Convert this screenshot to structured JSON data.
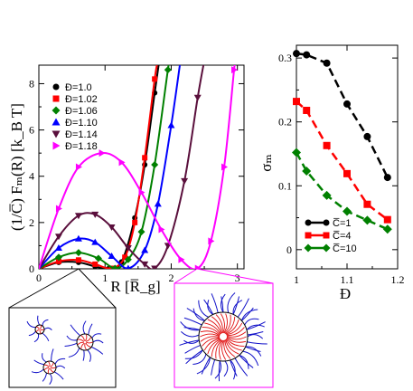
{
  "chart_data": [
    {
      "type": "line",
      "ylabel": "(1/C̅) Fₘ(R) [k_B T]",
      "xlabel": "R [R̅_g]",
      "xlim": [
        0,
        3.1
      ],
      "ylim": [
        0,
        8.8
      ],
      "x_ticks": [
        "0",
        "1",
        "2",
        "3"
      ],
      "y_ticks": [
        "0",
        "2",
        "4",
        "6",
        "8"
      ],
      "legend_position": "top-left",
      "series": [
        {
          "name": "Đ=1.0",
          "color": "#000000",
          "marker": "circle",
          "points": [
            [
              0,
              0
            ],
            [
              0.3,
              0.28
            ],
            [
              0.6,
              0.28
            ],
            [
              0.85,
              0.1
            ],
            [
              1.05,
              0.0
            ],
            [
              1.25,
              0.3
            ],
            [
              1.45,
              2.2
            ],
            [
              1.6,
              4.5
            ],
            [
              1.75,
              7.6
            ],
            [
              1.82,
              9.0
            ]
          ]
        },
        {
          "name": "Đ=1.02",
          "color": "#ff0000",
          "marker": "square",
          "points": [
            [
              0,
              0
            ],
            [
              0.3,
              0.32
            ],
            [
              0.6,
              0.38
            ],
            [
              0.85,
              0.2
            ],
            [
              1.1,
              0.02
            ],
            [
              1.3,
              0.5
            ],
            [
              1.45,
              2.0
            ],
            [
              1.6,
              4.8
            ],
            [
              1.75,
              8.2
            ],
            [
              1.8,
              9.0
            ]
          ]
        },
        {
          "name": "Đ=1.06",
          "color": "#008000",
          "marker": "diamond",
          "points": [
            [
              0,
              0
            ],
            [
              0.3,
              0.5
            ],
            [
              0.6,
              0.7
            ],
            [
              0.9,
              0.45
            ],
            [
              1.15,
              0.02
            ],
            [
              1.35,
              0.4
            ],
            [
              1.55,
              1.6
            ],
            [
              1.75,
              4.5
            ],
            [
              1.95,
              8.6
            ],
            [
              1.98,
              9.0
            ]
          ]
        },
        {
          "name": "Đ=1.10",
          "color": "#0000ff",
          "marker": "triangle-up",
          "points": [
            [
              0,
              0
            ],
            [
              0.3,
              0.9
            ],
            [
              0.6,
              1.3
            ],
            [
              0.85,
              1.15
            ],
            [
              1.1,
              0.55
            ],
            [
              1.35,
              0.02
            ],
            [
              1.6,
              0.8
            ],
            [
              1.8,
              2.8
            ],
            [
              2.0,
              6.2
            ],
            [
              2.14,
              9.0
            ]
          ]
        },
        {
          "name": "Đ=1.14",
          "color": "#5a0f3c",
          "marker": "triangle-down",
          "points": [
            [
              0,
              0
            ],
            [
              0.3,
              1.4
            ],
            [
              0.6,
              2.3
            ],
            [
              0.85,
              2.35
            ],
            [
              1.1,
              1.8
            ],
            [
              1.35,
              0.9
            ],
            [
              1.6,
              0.2
            ],
            [
              1.75,
              0.02
            ],
            [
              1.95,
              1.0
            ],
            [
              2.2,
              3.8
            ],
            [
              2.4,
              7.4
            ],
            [
              2.5,
              9.0
            ]
          ]
        },
        {
          "name": "Đ=1.18",
          "color": "#ff00ff",
          "marker": "triangle-right",
          "points": [
            [
              0,
              0
            ],
            [
              0.3,
              2.6
            ],
            [
              0.6,
              4.4
            ],
            [
              0.95,
              5.0
            ],
            [
              1.25,
              4.6
            ],
            [
              1.55,
              3.3
            ],
            [
              1.85,
              1.7
            ],
            [
              2.15,
              0.4
            ],
            [
              2.4,
              0.02
            ],
            [
              2.6,
              1.2
            ],
            [
              2.8,
              4.4
            ],
            [
              2.95,
              8.6
            ],
            [
              2.97,
              9.0
            ]
          ]
        }
      ]
    },
    {
      "type": "line",
      "ylabel": "σₘ",
      "xlabel": "Đ",
      "xlim": [
        1.0,
        1.2
      ],
      "ylim": [
        -0.03,
        0.32
      ],
      "x_ticks": [
        "1",
        "1.1",
        "1.2"
      ],
      "y_ticks": [
        "0",
        "0.1",
        "0.2",
        "0.3"
      ],
      "legend_position": "bottom-left",
      "x": [
        1.0,
        1.02,
        1.06,
        1.1,
        1.14,
        1.18
      ],
      "series": [
        {
          "name": "C̅=1",
          "color": "#000000",
          "marker": "circle",
          "values": [
            0.307,
            0.305,
            0.292,
            0.228,
            0.177,
            0.113
          ]
        },
        {
          "name": "C̅=4",
          "color": "#ff0000",
          "marker": "square",
          "values": [
            0.232,
            0.218,
            0.163,
            0.119,
            0.071,
            0.047
          ]
        },
        {
          "name": "C̅=10",
          "color": "#008000",
          "marker": "diamond",
          "values": [
            0.152,
            0.123,
            0.085,
            0.06,
            0.046,
            0.032
          ]
        }
      ]
    }
  ]
}
